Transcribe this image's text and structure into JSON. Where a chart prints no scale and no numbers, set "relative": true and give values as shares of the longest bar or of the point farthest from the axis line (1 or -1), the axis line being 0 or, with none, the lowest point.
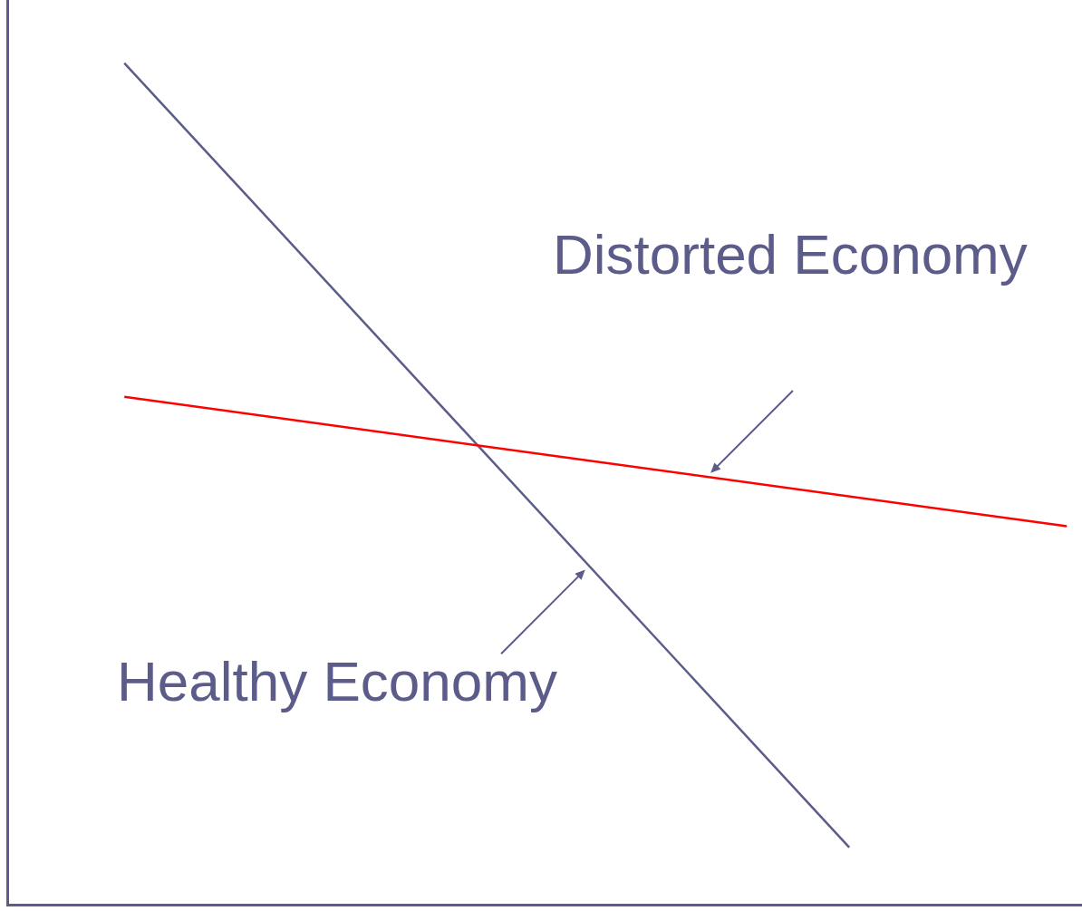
{
  "chart_data": {
    "type": "line",
    "relative": true,
    "categories": [
      null,
      null,
      null,
      null,
      null,
      null,
      null,
      null,
      null,
      null,
      null,
      null,
      null,
      null
    ],
    "series": [
      {
        "name": "Healthy Economy",
        "color": "#5c5c8a",
        "values": [
          1.0,
          null,
          null,
          null,
          null,
          null,
          null,
          null,
          null,
          null,
          0.067,
          null,
          null,
          null
        ]
      },
      {
        "name": "Distorted Economy",
        "color": "#ff0000",
        "values": [
          0.603,
          null,
          null,
          null,
          null,
          null,
          null,
          null,
          null,
          null,
          null,
          null,
          null,
          0.449
        ]
      }
    ]
  }
}
